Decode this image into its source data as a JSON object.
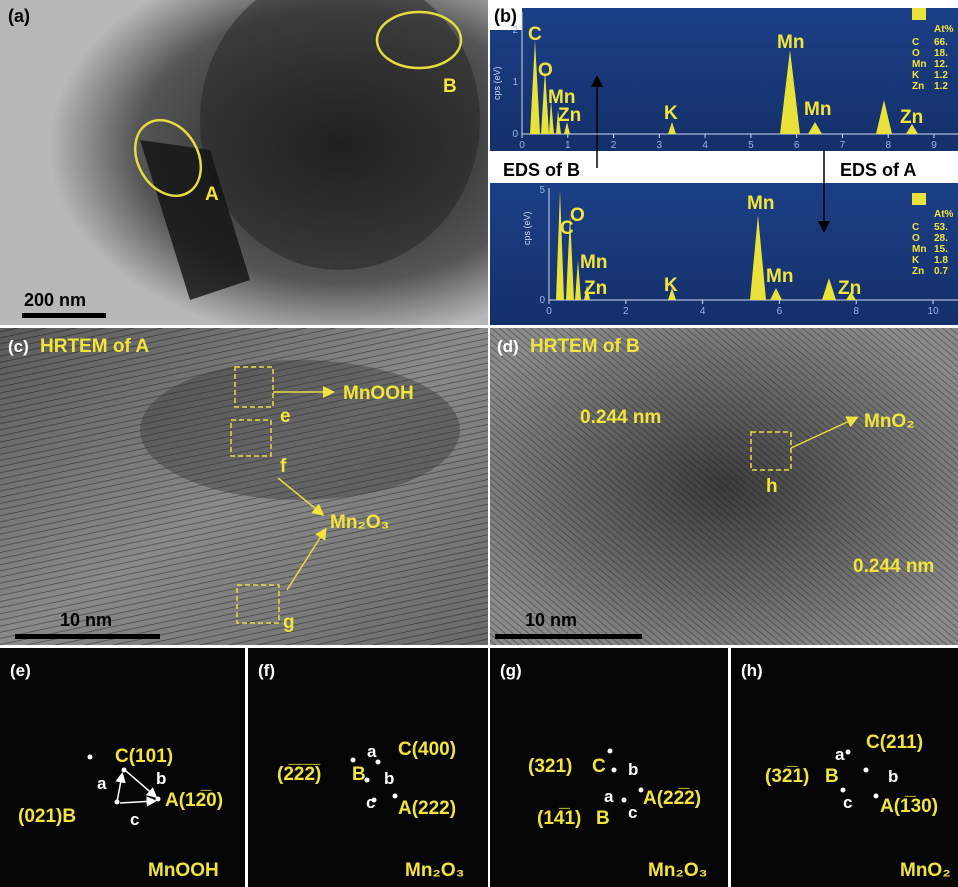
{
  "panels": {
    "a": {
      "label": "(a)",
      "markers": [
        "A",
        "B"
      ],
      "scale_bar": "200 nm"
    },
    "b": {
      "label": "(b)",
      "caption_left": "EDS of B",
      "caption_right": "EDS of A",
      "top": {
        "y_axis": "cps (eV)",
        "yticks": [
          "0",
          "1",
          "2"
        ],
        "xticks": [
          "0",
          "1",
          "2",
          "3",
          "4",
          "5",
          "6",
          "7",
          "8",
          "9"
        ],
        "peaks": [
          "C",
          "O",
          "Mn",
          "Zn",
          "K",
          "Mn",
          "Mn",
          "Zn"
        ],
        "legend": {
          "header": "At%",
          "rows": [
            [
              "C",
              "66."
            ],
            [
              "O",
              "18."
            ],
            [
              "Mn",
              "12."
            ],
            [
              "K",
              "1.2"
            ],
            [
              "Zn",
              "1.2"
            ]
          ]
        }
      },
      "bottom": {
        "y_axis": "cps (eV)",
        "yticks": [
          "0",
          "5"
        ],
        "xticks": [
          "0",
          "2",
          "4",
          "6",
          "8",
          "10"
        ],
        "peaks": [
          "C",
          "O",
          "Mn",
          "Zn",
          "K",
          "Mn",
          "Mn",
          "Zn"
        ],
        "legend": {
          "header": "At%",
          "rows": [
            [
              "C",
              "53."
            ],
            [
              "O",
              "28."
            ],
            [
              "Mn",
              "15."
            ],
            [
              "K",
              "1.8"
            ],
            [
              "Zn",
              "0.7"
            ]
          ]
        }
      }
    },
    "c": {
      "label": "(c)",
      "title": "HRTEM of A",
      "boxes": [
        "e",
        "f",
        "g"
      ],
      "phases": [
        "MnOOH",
        "Mn₂O₃"
      ],
      "scale_bar": "10 nm"
    },
    "d": {
      "label": "(d)",
      "title": "HRTEM of B",
      "box": "h",
      "phase": "MnO₂",
      "spacings": [
        "0.244 nm",
        "0.244 nm"
      ],
      "scale_bar": "10 nm"
    },
    "e": {
      "label": "(e)",
      "spots": [
        "C(101)",
        "(021)B",
        "A(12̅0)"
      ],
      "vectors": [
        "a",
        "b",
        "c"
      ],
      "phase": "MnOOH"
    },
    "f": {
      "label": "(f)",
      "spots": [
        "(2̅2̅2̅)",
        "B",
        "C(400)",
        "A(222)"
      ],
      "vectors": [
        "a",
        "b",
        "c"
      ],
      "phase": "Mn₂O₃"
    },
    "g": {
      "label": "(g)",
      "spots": [
        "(321)",
        "C",
        "(14̅1)",
        "B",
        "A(22̅2)"
      ],
      "vectors": [
        "a",
        "b",
        "c"
      ],
      "phase": "Mn₂O₃"
    },
    "h": {
      "label": "(h)",
      "spots": [
        "C(211)",
        "(32̅1)",
        "B",
        "A(1̅30)"
      ],
      "vectors": [
        "a",
        "b",
        "c"
      ],
      "phase": "MnO₂"
    }
  }
}
